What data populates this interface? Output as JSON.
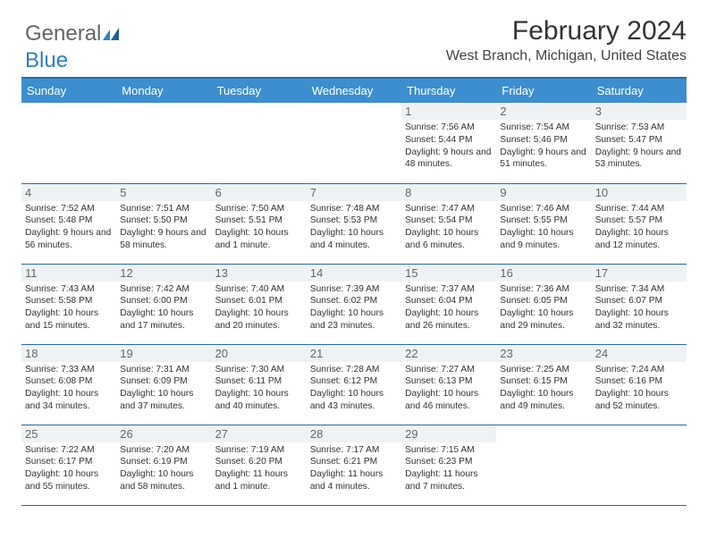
{
  "brand": {
    "part1": "General",
    "part2": "Blue"
  },
  "title": "February 2024",
  "location": "West Branch, Michigan, United States",
  "colors": {
    "header_bg": "#3d8ecf",
    "border": "#2c6aa0",
    "daynum_bg": "#eef2f5",
    "text": "#333333",
    "brand_gray": "#666666",
    "brand_blue": "#2e7fc1"
  },
  "typography": {
    "title_fontsize": 30,
    "location_fontsize": 16,
    "dayhead_fontsize": 13,
    "detail_fontsize": 10
  },
  "day_headers": [
    "Sunday",
    "Monday",
    "Tuesday",
    "Wednesday",
    "Thursday",
    "Friday",
    "Saturday"
  ],
  "weeks": [
    [
      null,
      null,
      null,
      null,
      {
        "n": "1",
        "sr": "7:56 AM",
        "ss": "5:44 PM",
        "dl": "9 hours and 48 minutes."
      },
      {
        "n": "2",
        "sr": "7:54 AM",
        "ss": "5:46 PM",
        "dl": "9 hours and 51 minutes."
      },
      {
        "n": "3",
        "sr": "7:53 AM",
        "ss": "5:47 PM",
        "dl": "9 hours and 53 minutes."
      }
    ],
    [
      {
        "n": "4",
        "sr": "7:52 AM",
        "ss": "5:48 PM",
        "dl": "9 hours and 56 minutes."
      },
      {
        "n": "5",
        "sr": "7:51 AM",
        "ss": "5:50 PM",
        "dl": "9 hours and 58 minutes."
      },
      {
        "n": "6",
        "sr": "7:50 AM",
        "ss": "5:51 PM",
        "dl": "10 hours and 1 minute."
      },
      {
        "n": "7",
        "sr": "7:48 AM",
        "ss": "5:53 PM",
        "dl": "10 hours and 4 minutes."
      },
      {
        "n": "8",
        "sr": "7:47 AM",
        "ss": "5:54 PM",
        "dl": "10 hours and 6 minutes."
      },
      {
        "n": "9",
        "sr": "7:46 AM",
        "ss": "5:55 PM",
        "dl": "10 hours and 9 minutes."
      },
      {
        "n": "10",
        "sr": "7:44 AM",
        "ss": "5:57 PM",
        "dl": "10 hours and 12 minutes."
      }
    ],
    [
      {
        "n": "11",
        "sr": "7:43 AM",
        "ss": "5:58 PM",
        "dl": "10 hours and 15 minutes."
      },
      {
        "n": "12",
        "sr": "7:42 AM",
        "ss": "6:00 PM",
        "dl": "10 hours and 17 minutes."
      },
      {
        "n": "13",
        "sr": "7:40 AM",
        "ss": "6:01 PM",
        "dl": "10 hours and 20 minutes."
      },
      {
        "n": "14",
        "sr": "7:39 AM",
        "ss": "6:02 PM",
        "dl": "10 hours and 23 minutes."
      },
      {
        "n": "15",
        "sr": "7:37 AM",
        "ss": "6:04 PM",
        "dl": "10 hours and 26 minutes."
      },
      {
        "n": "16",
        "sr": "7:36 AM",
        "ss": "6:05 PM",
        "dl": "10 hours and 29 minutes."
      },
      {
        "n": "17",
        "sr": "7:34 AM",
        "ss": "6:07 PM",
        "dl": "10 hours and 32 minutes."
      }
    ],
    [
      {
        "n": "18",
        "sr": "7:33 AM",
        "ss": "6:08 PM",
        "dl": "10 hours and 34 minutes."
      },
      {
        "n": "19",
        "sr": "7:31 AM",
        "ss": "6:09 PM",
        "dl": "10 hours and 37 minutes."
      },
      {
        "n": "20",
        "sr": "7:30 AM",
        "ss": "6:11 PM",
        "dl": "10 hours and 40 minutes."
      },
      {
        "n": "21",
        "sr": "7:28 AM",
        "ss": "6:12 PM",
        "dl": "10 hours and 43 minutes."
      },
      {
        "n": "22",
        "sr": "7:27 AM",
        "ss": "6:13 PM",
        "dl": "10 hours and 46 minutes."
      },
      {
        "n": "23",
        "sr": "7:25 AM",
        "ss": "6:15 PM",
        "dl": "10 hours and 49 minutes."
      },
      {
        "n": "24",
        "sr": "7:24 AM",
        "ss": "6:16 PM",
        "dl": "10 hours and 52 minutes."
      }
    ],
    [
      {
        "n": "25",
        "sr": "7:22 AM",
        "ss": "6:17 PM",
        "dl": "10 hours and 55 minutes."
      },
      {
        "n": "26",
        "sr": "7:20 AM",
        "ss": "6:19 PM",
        "dl": "10 hours and 58 minutes."
      },
      {
        "n": "27",
        "sr": "7:19 AM",
        "ss": "6:20 PM",
        "dl": "11 hours and 1 minute."
      },
      {
        "n": "28",
        "sr": "7:17 AM",
        "ss": "6:21 PM",
        "dl": "11 hours and 4 minutes."
      },
      {
        "n": "29",
        "sr": "7:15 AM",
        "ss": "6:23 PM",
        "dl": "11 hours and 7 minutes."
      },
      null,
      null
    ]
  ],
  "labels": {
    "sunrise": "Sunrise: ",
    "sunset": "Sunset: ",
    "daylight": "Daylight: "
  }
}
